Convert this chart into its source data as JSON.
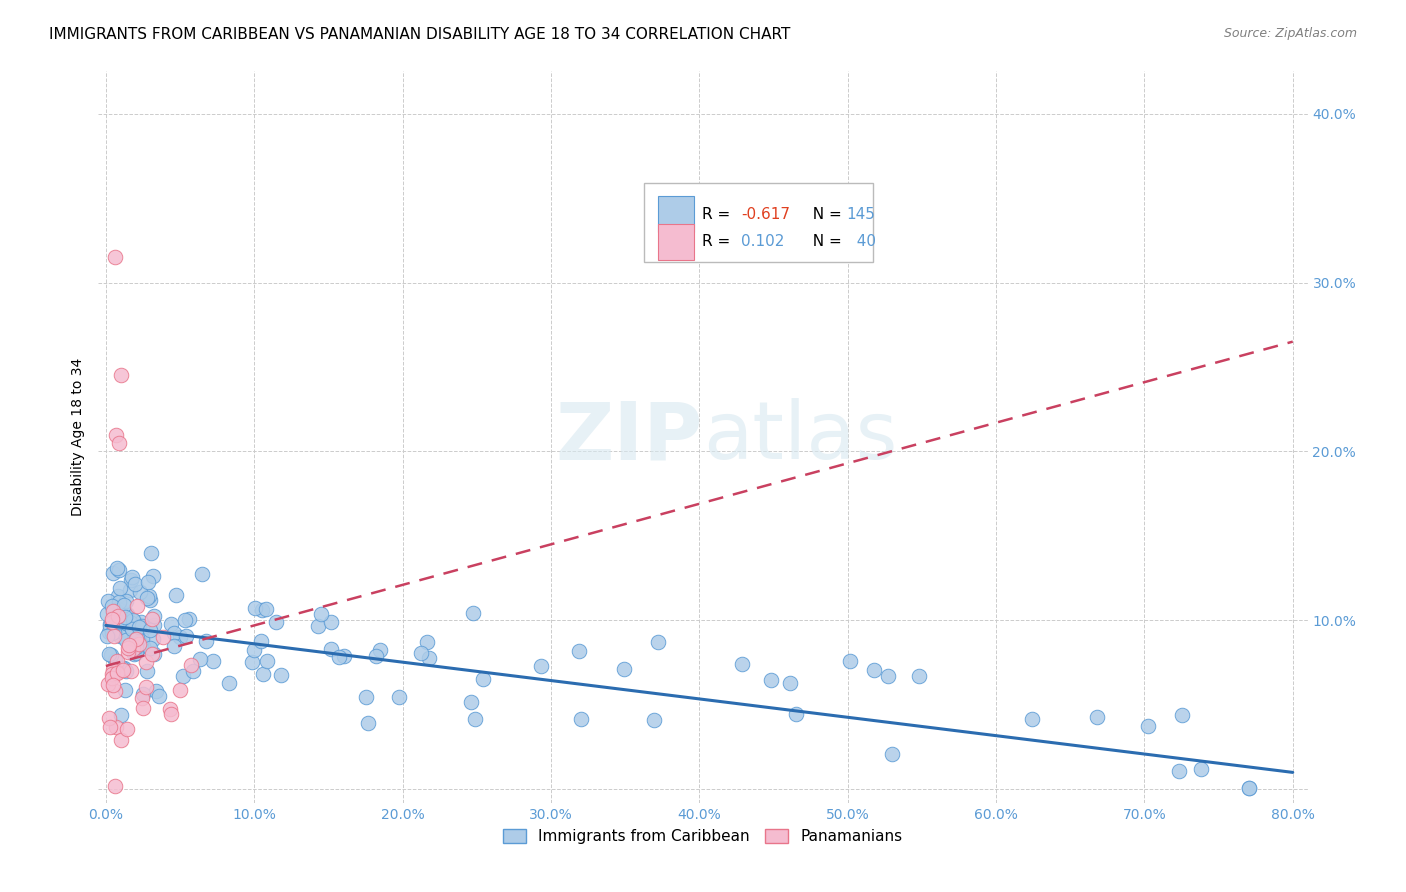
{
  "title": "IMMIGRANTS FROM CARIBBEAN VS PANAMANIAN DISABILITY AGE 18 TO 34 CORRELATION CHART",
  "source": "Source: ZipAtlas.com",
  "tick_color": "#5b9bd5",
  "ylabel": "Disability Age 18 to 34",
  "caribbean_R": -0.617,
  "caribbean_N": 145,
  "panamanian_R": 0.102,
  "panamanian_N": 40,
  "caribbean_color": "#aecce8",
  "caribbean_edge_color": "#5b9bd5",
  "panamanian_color": "#f5bcd0",
  "panamanian_edge_color": "#e8758a",
  "regression_caribbean_color": "#2b6cb0",
  "regression_panamanian_color": "#c94060",
  "background_color": "#ffffff",
  "grid_color": "#cccccc",
  "title_fontsize": 11,
  "axis_label_fontsize": 10,
  "tick_fontsize": 10,
  "legend_fontsize": 12
}
